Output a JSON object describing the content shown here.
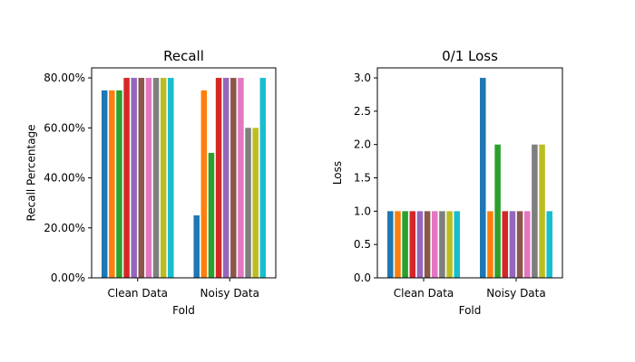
{
  "chart_data": [
    {
      "type": "bar",
      "title": "Recall",
      "xlabel": "Fold",
      "ylabel": "Recall Percentage",
      "categories": [
        "Clean Data",
        "Noisy Data"
      ],
      "ylim": [
        0,
        0.84
      ],
      "yticks": [
        0,
        0.2,
        0.4,
        0.6,
        0.8
      ],
      "ytick_labels": [
        "0.00%",
        "20.00%",
        "40.00%",
        "60.00%",
        "80.00%"
      ],
      "series": [
        {
          "color": "#1f77b4",
          "values": [
            0.75,
            0.25
          ]
        },
        {
          "color": "#ff7f0e",
          "values": [
            0.75,
            0.75
          ]
        },
        {
          "color": "#2ca02c",
          "values": [
            0.75,
            0.5
          ]
        },
        {
          "color": "#d62728",
          "values": [
            0.8,
            0.8
          ]
        },
        {
          "color": "#9467bd",
          "values": [
            0.8,
            0.8
          ]
        },
        {
          "color": "#8c564b",
          "values": [
            0.8,
            0.8
          ]
        },
        {
          "color": "#e377c2",
          "values": [
            0.8,
            0.8
          ]
        },
        {
          "color": "#7f7f7f",
          "values": [
            0.8,
            0.6
          ]
        },
        {
          "color": "#bcbd22",
          "values": [
            0.8,
            0.6
          ]
        },
        {
          "color": "#17becf",
          "values": [
            0.8,
            0.8
          ]
        }
      ]
    },
    {
      "type": "bar",
      "title": "0/1 Loss",
      "xlabel": "Fold",
      "ylabel": "Loss",
      "categories": [
        "Clean Data",
        "Noisy Data"
      ],
      "ylim": [
        0,
        3.15
      ],
      "yticks": [
        0,
        0.5,
        1.0,
        1.5,
        2.0,
        2.5,
        3.0
      ],
      "ytick_labels": [
        "0.0",
        "0.5",
        "1.0",
        "1.5",
        "2.0",
        "2.5",
        "3.0"
      ],
      "series": [
        {
          "color": "#1f77b4",
          "values": [
            1,
            3
          ]
        },
        {
          "color": "#ff7f0e",
          "values": [
            1,
            1
          ]
        },
        {
          "color": "#2ca02c",
          "values": [
            1,
            2
          ]
        },
        {
          "color": "#d62728",
          "values": [
            1,
            1
          ]
        },
        {
          "color": "#9467bd",
          "values": [
            1,
            1
          ]
        },
        {
          "color": "#8c564b",
          "values": [
            1,
            1
          ]
        },
        {
          "color": "#e377c2",
          "values": [
            1,
            1
          ]
        },
        {
          "color": "#7f7f7f",
          "values": [
            1,
            2
          ]
        },
        {
          "color": "#bcbd22",
          "values": [
            1,
            2
          ]
        },
        {
          "color": "#17becf",
          "values": [
            1,
            1
          ]
        }
      ]
    }
  ]
}
